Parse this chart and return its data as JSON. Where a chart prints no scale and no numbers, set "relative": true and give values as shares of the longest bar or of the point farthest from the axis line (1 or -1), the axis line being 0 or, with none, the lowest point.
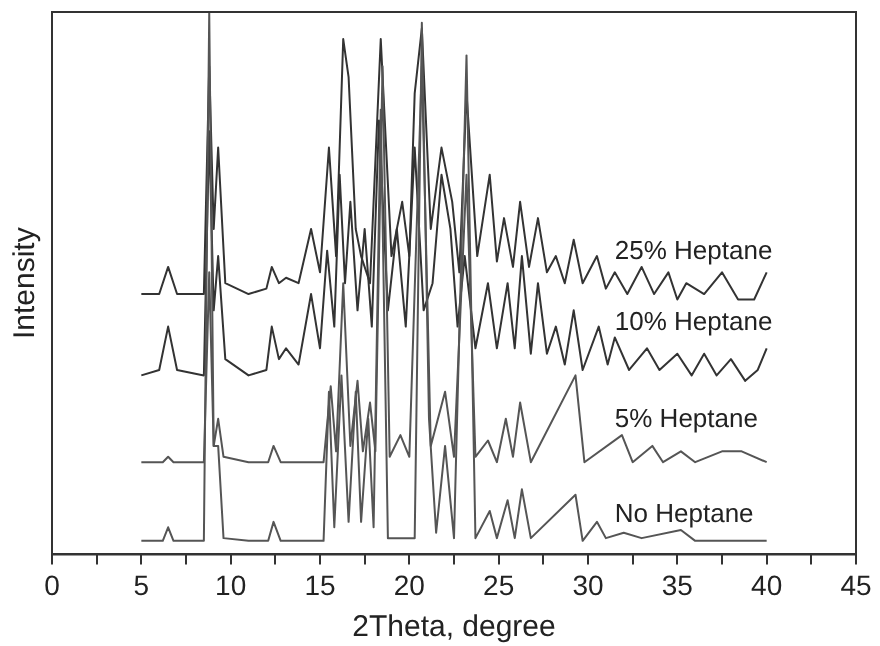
{
  "chart_data": {
    "type": "line",
    "xlabel": "2Theta, degree",
    "ylabel": "Intensity",
    "relative": true,
    "legend": false,
    "grid": false,
    "marker": "none",
    "line_style": "solid",
    "tick_labels": "x",
    "xlim": [
      0,
      45
    ],
    "xticks": [
      0,
      {
        "value": 2.5,
        "label": null
      },
      5,
      {
        "value": 7.5,
        "label": null
      },
      10,
      {
        "value": 12.5,
        "label": null
      },
      15,
      {
        "value": 17.5,
        "label": null
      },
      20,
      {
        "value": 22.5,
        "label": null
      },
      25,
      {
        "value": 27.5,
        "label": null
      },
      30,
      {
        "value": 32.5,
        "label": null
      },
      35,
      {
        "value": 37.5,
        "label": null
      },
      40,
      {
        "value": 42.5,
        "label": null
      },
      45
    ],
    "series": [
      {
        "name": "No Heptane",
        "color": "#555555",
        "x": [
          5,
          6.2,
          6.5,
          6.8,
          8.5,
          8.8,
          9.05,
          9.3,
          9.6,
          11,
          12.1,
          12.4,
          12.8,
          15.2,
          15.5,
          15.8,
          16.2,
          16.6,
          17.0,
          17.3,
          17.7,
          18.0,
          18.4,
          18.8,
          20.3,
          20.7,
          21.1,
          21.5,
          22.0,
          22.5,
          23.2,
          23.7,
          24.5,
          24.9,
          25.5,
          25.9,
          26.3,
          26.8,
          29.3,
          29.7,
          30.5,
          31,
          32,
          33,
          35.2,
          36,
          40
        ],
        "values": [
          0.025,
          0.025,
          0.05,
          0.025,
          0.025,
          1,
          0.2,
          0.2,
          0.03,
          0.025,
          0.025,
          0.06,
          0.025,
          0.025,
          0.3,
          0.05,
          0.33,
          0.06,
          0.3,
          0.06,
          0.25,
          0.05,
          0.82,
          0.03,
          0.03,
          0.98,
          0.25,
          0.04,
          0.2,
          0.03,
          0.92,
          0.03,
          0.08,
          0.03,
          0.1,
          0.03,
          0.12,
          0.03,
          0.11,
          0.025,
          0.06,
          0.03,
          0.04,
          0.03,
          0.045,
          0.025,
          0.025
        ]
      },
      {
        "name": "5% Heptane",
        "color": "#555555",
        "x": [
          5,
          6.2,
          6.5,
          6.8,
          8.5,
          8.8,
          9.05,
          9.3,
          9.6,
          11,
          12.1,
          12.4,
          12.8,
          15.2,
          15.6,
          15.9,
          16.3,
          16.7,
          17.1,
          17.4,
          17.8,
          18.1,
          18.5,
          18.9,
          19.5,
          20.0,
          20.7,
          21.2,
          22.0,
          22.5,
          23.2,
          23.7,
          24.4,
          24.9,
          25.4,
          25.8,
          26.2,
          26.8,
          29.3,
          29.8,
          31.9,
          32.5,
          33.6,
          34.2,
          35.2,
          36,
          37.5,
          38.6,
          40
        ],
        "values": [
          0.17,
          0.17,
          0.18,
          0.17,
          0.17,
          0.52,
          0.2,
          0.25,
          0.18,
          0.17,
          0.17,
          0.2,
          0.17,
          0.17,
          0.31,
          0.19,
          0.5,
          0.2,
          0.32,
          0.19,
          0.28,
          0.19,
          0.9,
          0.18,
          0.22,
          0.18,
          0.9,
          0.2,
          0.3,
          0.18,
          0.7,
          0.18,
          0.21,
          0.17,
          0.25,
          0.18,
          0.28,
          0.17,
          0.33,
          0.17,
          0.22,
          0.17,
          0.2,
          0.17,
          0.19,
          0.17,
          0.19,
          0.19,
          0.17
        ]
      },
      {
        "name": "10% Heptane",
        "color": "#333333",
        "x": [
          5,
          6,
          6.5,
          7,
          8.5,
          8.8,
          9.05,
          9.3,
          9.7,
          11,
          12,
          12.3,
          12.7,
          13.1,
          13.8,
          14.5,
          15,
          15.4,
          15.8,
          16.1,
          16.4,
          16.7,
          17.1,
          17.5,
          17.9,
          18.3,
          18.8,
          19.3,
          19.8,
          20.3,
          20.8,
          21.3,
          21.8,
          22.3,
          22.7,
          23.1,
          23.7,
          24.4,
          24.9,
          25.5,
          25.9,
          26.3,
          26.8,
          27.2,
          27.7,
          28.2,
          28.7,
          29.2,
          29.7,
          30.6,
          31.1,
          31.5,
          32.3,
          33.3,
          34,
          35,
          35.8,
          36.5,
          37.2,
          38,
          38.8,
          39.5,
          40
        ],
        "values": [
          0.33,
          0.34,
          0.42,
          0.34,
          0.33,
          0.78,
          0.45,
          0.55,
          0.36,
          0.33,
          0.34,
          0.42,
          0.36,
          0.38,
          0.35,
          0.48,
          0.38,
          0.56,
          0.42,
          0.7,
          0.5,
          0.65,
          0.45,
          0.6,
          0.42,
          0.8,
          0.45,
          0.6,
          0.42,
          0.75,
          0.45,
          0.5,
          0.7,
          0.6,
          0.42,
          0.55,
          0.38,
          0.5,
          0.38,
          0.5,
          0.38,
          0.55,
          0.37,
          0.5,
          0.37,
          0.42,
          0.35,
          0.45,
          0.34,
          0.42,
          0.35,
          0.4,
          0.34,
          0.38,
          0.34,
          0.37,
          0.33,
          0.37,
          0.33,
          0.36,
          0.32,
          0.34,
          0.38
        ]
      },
      {
        "name": "25% Heptane",
        "color": "#333333",
        "x": [
          5,
          6,
          6.5,
          7,
          8.5,
          8.8,
          9.05,
          9.3,
          9.7,
          11,
          12,
          12.3,
          12.7,
          13.1,
          13.8,
          14.5,
          15,
          15.5,
          15.9,
          16.3,
          16.6,
          17,
          17.3,
          17.8,
          18.4,
          19,
          19.6,
          20,
          20.3,
          20.7,
          21.2,
          21.8,
          22.4,
          22.8,
          23.2,
          23.8,
          24.5,
          24.9,
          25.3,
          25.8,
          26.2,
          26.7,
          27.2,
          27.7,
          28.2,
          28.7,
          29.2,
          29.7,
          30.5,
          31,
          31.5,
          32.2,
          33,
          33.7,
          34.5,
          35,
          35.5,
          36.5,
          37.5,
          38.4,
          39.3,
          40
        ],
        "values": [
          0.48,
          0.48,
          0.53,
          0.48,
          0.48,
          0.9,
          0.6,
          0.75,
          0.5,
          0.48,
          0.49,
          0.53,
          0.5,
          0.51,
          0.5,
          0.6,
          0.52,
          0.75,
          0.55,
          0.95,
          0.88,
          0.6,
          0.55,
          0.5,
          0.95,
          0.55,
          0.65,
          0.55,
          0.85,
          0.97,
          0.6,
          0.75,
          0.65,
          0.52,
          0.85,
          0.55,
          0.7,
          0.54,
          0.62,
          0.53,
          0.65,
          0.53,
          0.62,
          0.52,
          0.55,
          0.5,
          0.58,
          0.5,
          0.55,
          0.49,
          0.52,
          0.48,
          0.53,
          0.48,
          0.52,
          0.47,
          0.5,
          0.48,
          0.52,
          0.47,
          0.47,
          0.52
        ]
      }
    ]
  }
}
